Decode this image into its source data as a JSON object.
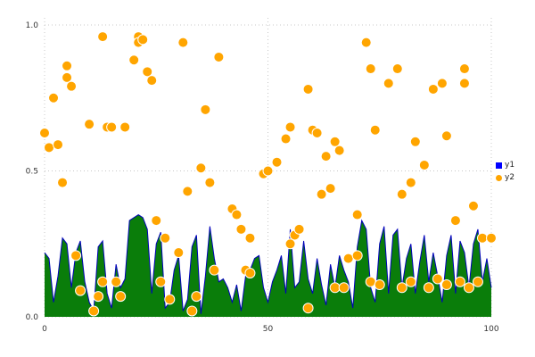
{
  "chart_data": {
    "type": "mixed",
    "title": "",
    "xlabel": "",
    "ylabel": "",
    "xlim": [
      0,
      100
    ],
    "ylim": [
      0,
      1
    ],
    "xticks": [
      0,
      50,
      100
    ],
    "xtick_labels": [
      "0",
      "50",
      "100"
    ],
    "yticks": [
      0,
      0.5,
      1
    ],
    "ytick_labels": [
      "0.0",
      "0.5",
      "1.0"
    ],
    "grid": true,
    "grid_style": "dotted",
    "grid_color": "#c8c8c8",
    "series": [
      {
        "name": "y1",
        "type": "area",
        "fill_color": "#0a7d0a",
        "line_color": "#0000bb",
        "x": [
          0,
          1,
          2,
          3,
          4,
          5,
          6,
          7,
          8,
          9,
          10,
          11,
          12,
          13,
          14,
          15,
          16,
          17,
          18,
          19,
          20,
          21,
          22,
          23,
          24,
          25,
          26,
          27,
          28,
          29,
          30,
          31,
          32,
          33,
          34,
          35,
          36,
          37,
          38,
          39,
          40,
          41,
          42,
          43,
          44,
          45,
          46,
          47,
          48,
          49,
          50,
          51,
          52,
          53,
          54,
          55,
          56,
          57,
          58,
          59,
          60,
          61,
          62,
          63,
          64,
          65,
          66,
          67,
          68,
          69,
          70,
          71,
          72,
          73,
          74,
          75,
          76,
          77,
          78,
          79,
          80,
          81,
          82,
          83,
          84,
          85,
          86,
          87,
          88,
          89,
          90,
          91,
          92,
          93,
          94,
          95,
          96,
          97,
          98,
          99,
          100
        ],
        "values": [
          0.22,
          0.2,
          0.05,
          0.14,
          0.27,
          0.25,
          0.1,
          0.22,
          0.26,
          0.12,
          0.05,
          0.02,
          0.24,
          0.26,
          0.08,
          0.03,
          0.18,
          0.1,
          0.13,
          0.33,
          0.34,
          0.35,
          0.34,
          0.3,
          0.08,
          0.25,
          0.29,
          0.03,
          0.05,
          0.16,
          0.21,
          0.02,
          0.06,
          0.24,
          0.28,
          0.01,
          0.14,
          0.31,
          0.2,
          0.12,
          0.13,
          0.1,
          0.05,
          0.11,
          0.02,
          0.14,
          0.16,
          0.2,
          0.21,
          0.1,
          0.05,
          0.12,
          0.16,
          0.21,
          0.08,
          0.3,
          0.1,
          0.12,
          0.26,
          0.13,
          0.08,
          0.2,
          0.11,
          0.04,
          0.18,
          0.1,
          0.21,
          0.16,
          0.12,
          0.03,
          0.24,
          0.33,
          0.3,
          0.1,
          0.05,
          0.25,
          0.31,
          0.08,
          0.28,
          0.3,
          0.1,
          0.2,
          0.25,
          0.08,
          0.19,
          0.28,
          0.12,
          0.22,
          0.14,
          0.05,
          0.21,
          0.28,
          0.08,
          0.26,
          0.22,
          0.1,
          0.25,
          0.3,
          0.12,
          0.2,
          0.1
        ]
      },
      {
        "name": "y2",
        "type": "scatter",
        "color": "#ffa500",
        "edge_color": "#ffffff",
        "marker_radius": 5.5,
        "points": [
          [
            0,
            0.63
          ],
          [
            1,
            0.58
          ],
          [
            2,
            0.75
          ],
          [
            3,
            0.59
          ],
          [
            4,
            0.46
          ],
          [
            5,
            0.86
          ],
          [
            5,
            0.82
          ],
          [
            6,
            0.79
          ],
          [
            7,
            0.21
          ],
          [
            8,
            0.09
          ],
          [
            10,
            0.66
          ],
          [
            11,
            0.02
          ],
          [
            12,
            0.07
          ],
          [
            13,
            0.96
          ],
          [
            13,
            0.12
          ],
          [
            14,
            0.65
          ],
          [
            15,
            0.65
          ],
          [
            16,
            0.12
          ],
          [
            17,
            0.07
          ],
          [
            18,
            0.65
          ],
          [
            20,
            0.88
          ],
          [
            21,
            0.96
          ],
          [
            21,
            0.94
          ],
          [
            22,
            0.95
          ],
          [
            23,
            0.84
          ],
          [
            24,
            0.81
          ],
          [
            25,
            0.33
          ],
          [
            26,
            0.12
          ],
          [
            27,
            0.27
          ],
          [
            28,
            0.06
          ],
          [
            30,
            0.22
          ],
          [
            31,
            0.94
          ],
          [
            32,
            0.43
          ],
          [
            33,
            0.02
          ],
          [
            34,
            0.07
          ],
          [
            35,
            0.51
          ],
          [
            36,
            0.71
          ],
          [
            37,
            0.46
          ],
          [
            38,
            0.16
          ],
          [
            39,
            0.89
          ],
          [
            42,
            0.37
          ],
          [
            43,
            0.35
          ],
          [
            44,
            0.3
          ],
          [
            45,
            0.16
          ],
          [
            46,
            0.15
          ],
          [
            46,
            0.27
          ],
          [
            49,
            0.49
          ],
          [
            50,
            0.5
          ],
          [
            52,
            0.53
          ],
          [
            54,
            0.61
          ],
          [
            55,
            0.65
          ],
          [
            55,
            0.25
          ],
          [
            56,
            0.28
          ],
          [
            57,
            0.3
          ],
          [
            59,
            0.78
          ],
          [
            59,
            0.03
          ],
          [
            60,
            0.64
          ],
          [
            61,
            0.63
          ],
          [
            62,
            0.42
          ],
          [
            63,
            0.55
          ],
          [
            64,
            0.44
          ],
          [
            65,
            0.6
          ],
          [
            65,
            0.1
          ],
          [
            66,
            0.57
          ],
          [
            67,
            0.1
          ],
          [
            68,
            0.2
          ],
          [
            70,
            0.35
          ],
          [
            70,
            0.21
          ],
          [
            72,
            0.94
          ],
          [
            73,
            0.85
          ],
          [
            73,
            0.12
          ],
          [
            74,
            0.64
          ],
          [
            75,
            0.11
          ],
          [
            77,
            0.8
          ],
          [
            79,
            0.85
          ],
          [
            80,
            0.42
          ],
          [
            80,
            0.1
          ],
          [
            82,
            0.46
          ],
          [
            82,
            0.12
          ],
          [
            83,
            0.6
          ],
          [
            85,
            0.52
          ],
          [
            86,
            0.1
          ],
          [
            87,
            0.78
          ],
          [
            88,
            0.13
          ],
          [
            89,
            0.8
          ],
          [
            90,
            0.62
          ],
          [
            90,
            0.11
          ],
          [
            92,
            0.33
          ],
          [
            93,
            0.12
          ],
          [
            94,
            0.85
          ],
          [
            94,
            0.8
          ],
          [
            95,
            0.1
          ],
          [
            96,
            0.38
          ],
          [
            97,
            0.12
          ],
          [
            98,
            0.27
          ],
          [
            100,
            0.27
          ]
        ]
      }
    ],
    "legend": {
      "position": "right",
      "items": [
        {
          "label": "y1",
          "marker": "square",
          "color": "#0000ff"
        },
        {
          "label": "y2",
          "marker": "circle",
          "color": "#ffa500"
        }
      ]
    }
  }
}
